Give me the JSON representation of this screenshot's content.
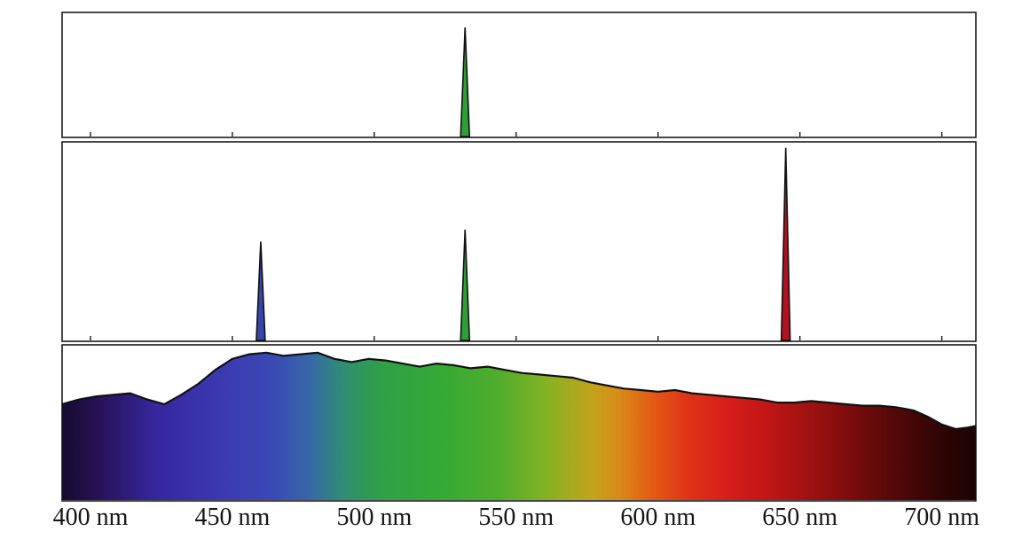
{
  "figure": {
    "name": "emission-spectra-comparison",
    "background": "#ffffff",
    "frame_color": "#1a1a1a",
    "outline_color": "#111111",
    "label_color": "#151515"
  },
  "chart_data": {
    "type": "multi-panel",
    "panel_types": [
      "line",
      "line",
      "area"
    ],
    "x_axis": {
      "xlim_nm": [
        390,
        712
      ],
      "ticks_nm": [
        400,
        450,
        500,
        550,
        600,
        650,
        700
      ],
      "tick_labels": [
        "400 nm",
        "450 nm",
        "500 nm",
        "550 nm",
        "600 nm",
        "650 nm",
        "700 nm"
      ],
      "unit": "nm"
    },
    "panels": [
      {
        "name": "single-wavelength-source-spectrum",
        "type": "line",
        "description": "One narrow green emission peak",
        "peaks": [
          {
            "wavelength_nm": 532,
            "relative_intensity": 0.88,
            "color": "#2f9e35"
          }
        ]
      },
      {
        "name": "three-wavelength-rgb-source-spectrum",
        "type": "line",
        "description": "Blue, green and red narrow emission peaks",
        "peaks": [
          {
            "wavelength_nm": 460,
            "relative_intensity": 0.5,
            "color": "#3644ac"
          },
          {
            "wavelength_nm": 532,
            "relative_intensity": 0.56,
            "color": "#2f9e35"
          },
          {
            "wavelength_nm": 645,
            "relative_intensity": 0.97,
            "color": "#b01220"
          }
        ]
      },
      {
        "name": "continuous-broadband-spectrum",
        "type": "area",
        "description": "Continuous visible-light spectrum with jagged intensity envelope and spectral color gradient fill",
        "x_nm": [
          390,
          396,
          402,
          408,
          414,
          420,
          426,
          432,
          438,
          444,
          450,
          456,
          462,
          468,
          474,
          480,
          486,
          492,
          498,
          504,
          510,
          516,
          522,
          528,
          534,
          540,
          546,
          552,
          558,
          564,
          570,
          576,
          582,
          588,
          594,
          600,
          606,
          612,
          618,
          624,
          630,
          636,
          642,
          648,
          654,
          660,
          666,
          672,
          678,
          684,
          690,
          695,
          700,
          705,
          709,
          712
        ],
        "relative_intensity": [
          0.62,
          0.65,
          0.67,
          0.68,
          0.69,
          0.65,
          0.62,
          0.68,
          0.75,
          0.84,
          0.91,
          0.94,
          0.95,
          0.93,
          0.94,
          0.95,
          0.91,
          0.89,
          0.91,
          0.9,
          0.88,
          0.86,
          0.88,
          0.87,
          0.85,
          0.86,
          0.84,
          0.82,
          0.81,
          0.8,
          0.79,
          0.76,
          0.74,
          0.72,
          0.71,
          0.7,
          0.71,
          0.69,
          0.68,
          0.67,
          0.66,
          0.65,
          0.63,
          0.63,
          0.64,
          0.63,
          0.62,
          0.61,
          0.61,
          0.6,
          0.58,
          0.54,
          0.49,
          0.46,
          0.47,
          0.48
        ],
        "gradient_stops": [
          {
            "offset": 0.0,
            "color": "#150b2e"
          },
          {
            "offset": 0.04,
            "color": "#271257"
          },
          {
            "offset": 0.1,
            "color": "#35269b"
          },
          {
            "offset": 0.17,
            "color": "#3c38b0"
          },
          {
            "offset": 0.23,
            "color": "#3a49b4"
          },
          {
            "offset": 0.27,
            "color": "#3767a8"
          },
          {
            "offset": 0.31,
            "color": "#2f8f70"
          },
          {
            "offset": 0.35,
            "color": "#2fa046"
          },
          {
            "offset": 0.42,
            "color": "#36aa34"
          },
          {
            "offset": 0.48,
            "color": "#52ad2c"
          },
          {
            "offset": 0.53,
            "color": "#84b224"
          },
          {
            "offset": 0.58,
            "color": "#c2a31c"
          },
          {
            "offset": 0.61,
            "color": "#d98a18"
          },
          {
            "offset": 0.645,
            "color": "#e25c15"
          },
          {
            "offset": 0.685,
            "color": "#e03317"
          },
          {
            "offset": 0.73,
            "color": "#d51d1a"
          },
          {
            "offset": 0.78,
            "color": "#bc1515"
          },
          {
            "offset": 0.84,
            "color": "#8e0f0f"
          },
          {
            "offset": 0.9,
            "color": "#5c0909"
          },
          {
            "offset": 0.96,
            "color": "#300505"
          },
          {
            "offset": 1.0,
            "color": "#1d0303"
          }
        ]
      }
    ]
  }
}
